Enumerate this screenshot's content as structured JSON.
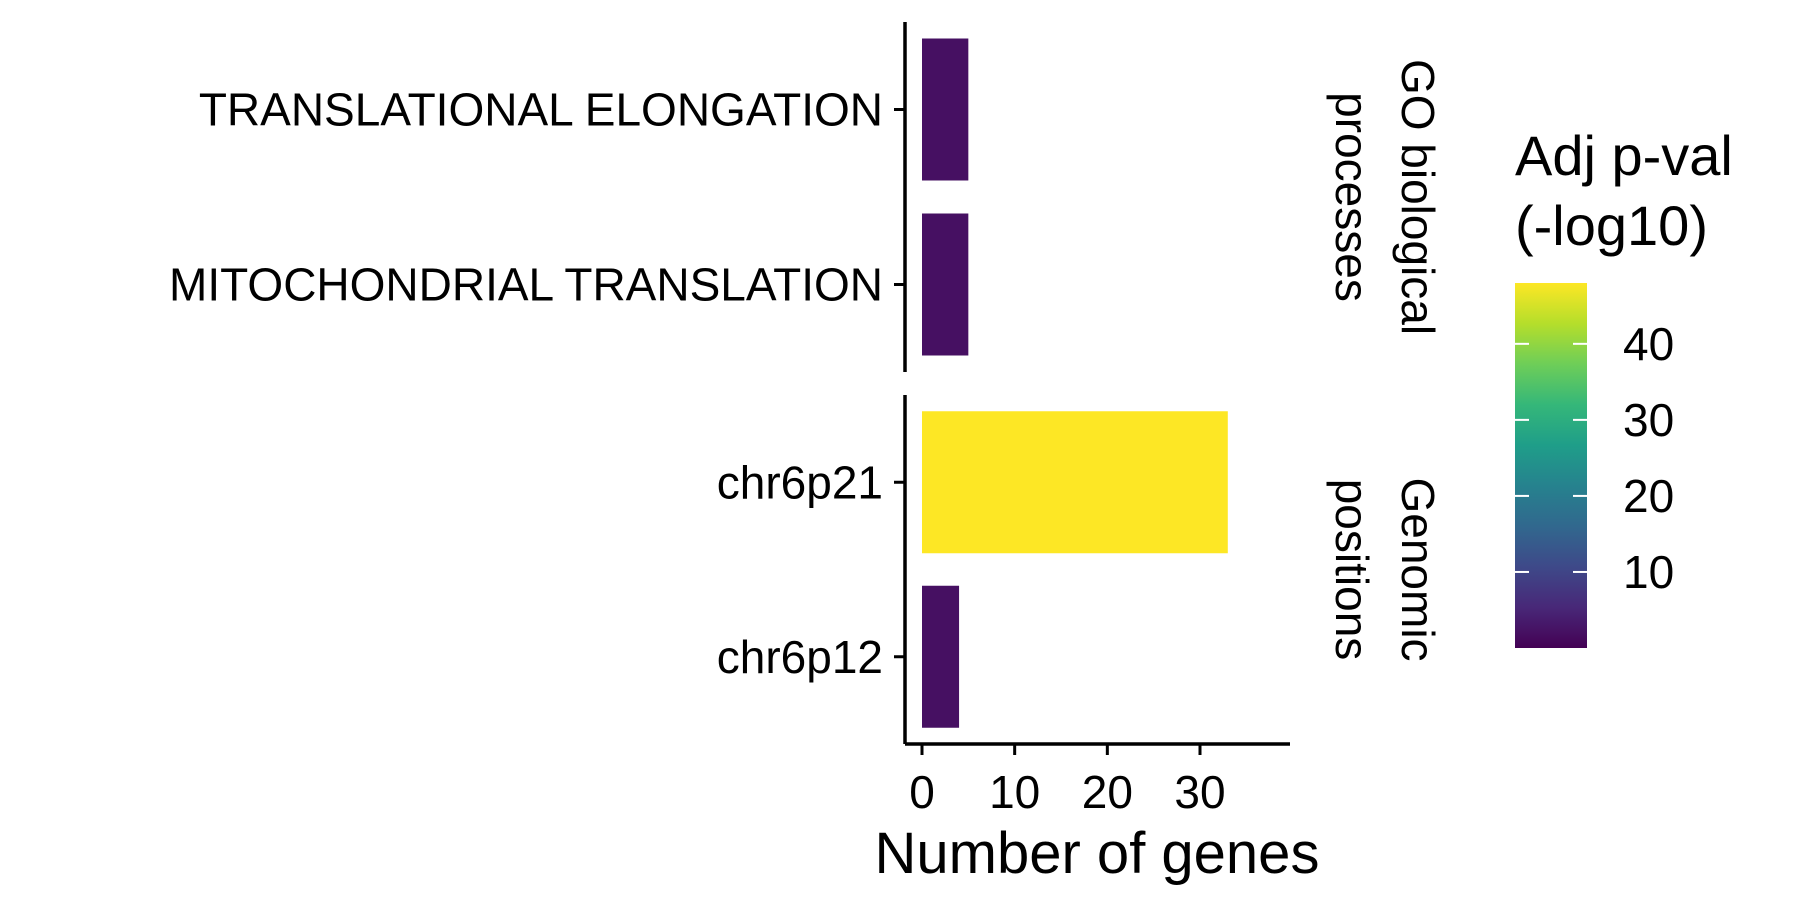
{
  "chart_data": {
    "type": "bar",
    "orientation": "horizontal",
    "xlabel": "Number of genes",
    "ylabel": "",
    "title": "",
    "xlim": [
      0,
      34.5
    ],
    "xticks": [
      0,
      10,
      20,
      30
    ],
    "grid": false,
    "legend_position": "right",
    "facets": [
      {
        "label": "GO biological processes",
        "label_lines": [
          "GO biological",
          "processes"
        ],
        "categories": [
          "TRANSLATIONAL ELONGATION",
          "MITOCHONDRIAL TRANSLATION"
        ],
        "values": [
          5,
          5
        ],
        "color_values": [
          2,
          2
        ]
      },
      {
        "label": "Genomic positions",
        "label_lines": [
          "Genomic",
          "positions"
        ],
        "categories": [
          "chr6p21",
          "chr6p12"
        ],
        "values": [
          33,
          4
        ],
        "color_values": [
          48,
          2
        ]
      }
    ],
    "colorbar": {
      "title_lines": [
        "Adj p-val",
        "(-log10)"
      ],
      "range": [
        0,
        48
      ],
      "ticks": [
        10,
        20,
        30,
        40
      ],
      "palette": "viridis",
      "stops": [
        "#440154",
        "#482878",
        "#3e4989",
        "#31688e",
        "#26828e",
        "#1f9e89",
        "#35b779",
        "#6ece58",
        "#b5de2b",
        "#fde725"
      ]
    }
  }
}
